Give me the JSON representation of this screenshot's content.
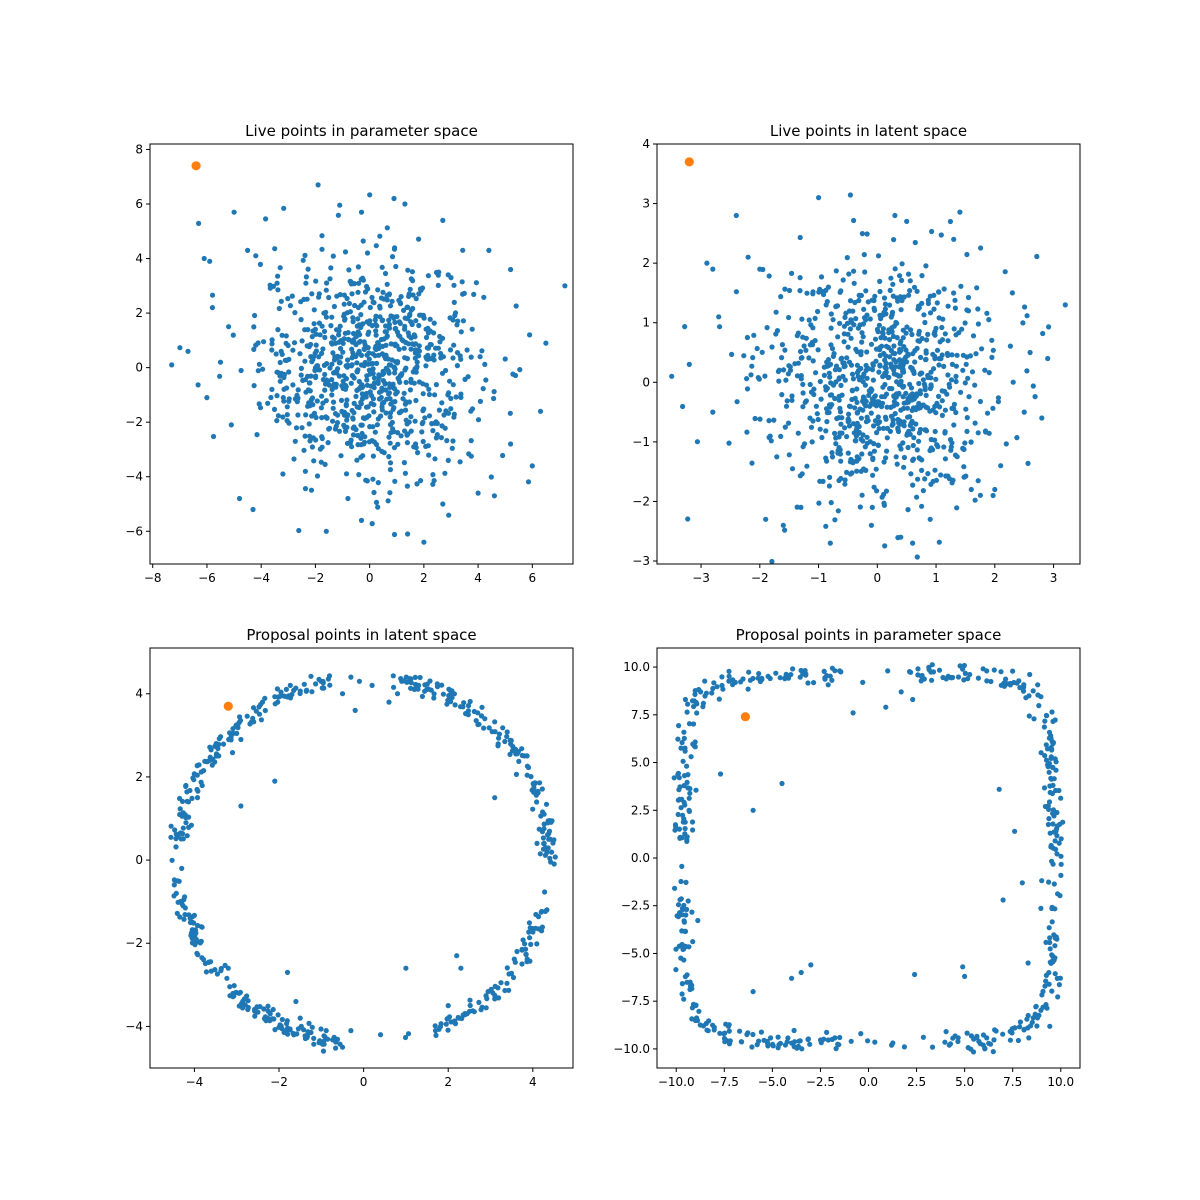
{
  "colors": {
    "live": "#1f77b4",
    "highlight": "#ff7f0e",
    "axes": "#000000",
    "background": "#ffffff"
  },
  "chart_data": [
    {
      "type": "scatter",
      "title": "Live points in parameter space",
      "xlabel": "",
      "ylabel": "",
      "xlim": [
        -8.1,
        7.5
      ],
      "ylim": [
        -7.2,
        8.2
      ],
      "xticks": [
        -8,
        -6,
        -4,
        -2,
        0,
        2,
        4,
        6
      ],
      "yticks": [
        -6,
        -4,
        -2,
        0,
        2,
        4,
        6,
        8
      ],
      "xtick_labels": [
        "−8",
        "−6",
        "−4",
        "−2",
        "0",
        "2",
        "4",
        "6"
      ],
      "ytick_labels": [
        "−6",
        "−4",
        "−2",
        "0",
        "2",
        "4",
        "6",
        "8"
      ],
      "grid": false,
      "pattern": "gaussian-cloud",
      "n_points": 900,
      "center": [
        0,
        0
      ],
      "sigma": [
        2,
        2
      ],
      "points": [
        [
          -7.3,
          0.1
        ],
        [
          -6.7,
          0.6
        ],
        [
          -6.1,
          4.0
        ],
        [
          -5.9,
          3.9
        ],
        [
          -6.0,
          -1.1
        ],
        [
          -5.8,
          2.2
        ],
        [
          -5.5,
          0.2
        ],
        [
          -5.1,
          -2.1
        ],
        [
          -5.2,
          1.5
        ],
        [
          -5.0,
          5.7
        ],
        [
          -4.8,
          -4.8
        ],
        [
          -4.3,
          -5.2
        ],
        [
          -4.5,
          4.3
        ],
        [
          -4.2,
          4.1
        ],
        [
          -1.9,
          6.7
        ],
        [
          0.9,
          6.2
        ],
        [
          1.3,
          6.0
        ],
        [
          2.7,
          5.4
        ],
        [
          -0.3,
          5.7
        ],
        [
          4.4,
          4.3
        ],
        [
          5.2,
          3.6
        ],
        [
          7.2,
          3.0
        ],
        [
          6.5,
          0.9
        ],
        [
          5.9,
          1.2
        ],
        [
          6.3,
          -1.6
        ],
        [
          5.2,
          -2.8
        ],
        [
          4.6,
          -4.7
        ],
        [
          4.0,
          -4.6
        ],
        [
          2.7,
          -5.0
        ],
        [
          2.0,
          -6.4
        ],
        [
          1.4,
          -6.1
        ],
        [
          -0.3,
          -5.6
        ],
        [
          -1.6,
          -6.0
        ],
        [
          -0.8,
          -4.8
        ],
        [
          3.0,
          3.3
        ],
        [
          -3.2,
          -3.9
        ],
        [
          2.9,
          -3.4
        ]
      ],
      "highlight": [
        [
          -6.4,
          7.4
        ]
      ]
    },
    {
      "type": "scatter",
      "title": "Live points in latent space",
      "xlabel": "",
      "ylabel": "",
      "xlim": [
        -3.75,
        3.45
      ],
      "ylim": [
        -3.05,
        4.0
      ],
      "xticks": [
        -3,
        -2,
        -1,
        0,
        1,
        2,
        3
      ],
      "yticks": [
        -3,
        -2,
        -1,
        0,
        1,
        2,
        3,
        4
      ],
      "xtick_labels": [
        "−3",
        "−2",
        "−1",
        "0",
        "1",
        "2",
        "3"
      ],
      "ytick_labels": [
        "−3",
        "−2",
        "−1",
        "0",
        "1",
        "2",
        "3",
        "4"
      ],
      "grid": false,
      "pattern": "gaussian-cloud",
      "n_points": 900,
      "center": [
        0,
        0
      ],
      "sigma": [
        1,
        1
      ],
      "points": [
        [
          -3.5,
          0.1
        ],
        [
          -3.2,
          0.3
        ],
        [
          -2.9,
          2.0
        ],
        [
          -2.8,
          1.9
        ],
        [
          -2.8,
          -0.5
        ],
        [
          -2.7,
          1.1
        ],
        [
          -2.4,
          2.8
        ],
        [
          -2.2,
          2.1
        ],
        [
          -2.0,
          1.9
        ],
        [
          -1.9,
          -2.3
        ],
        [
          -1.6,
          -2.4
        ],
        [
          -0.8,
          -2.7
        ],
        [
          0.6,
          -2.7
        ],
        [
          0.9,
          -2.3
        ],
        [
          -1.0,
          3.1
        ],
        [
          0.3,
          2.8
        ],
        [
          0.5,
          2.7
        ],
        [
          1.3,
          2.4
        ],
        [
          2.3,
          1.5
        ],
        [
          3.2,
          1.3
        ],
        [
          2.9,
          0.4
        ],
        [
          2.6,
          0.5
        ],
        [
          2.8,
          -0.6
        ],
        [
          2.5,
          -0.5
        ],
        [
          2.1,
          -1.4
        ],
        [
          2.0,
          -1.8
        ],
        [
          1.6,
          -1.8
        ],
        [
          -0.1,
          -2.4
        ],
        [
          -1.3,
          -2.1
        ],
        [
          0.4,
          -2.6
        ]
      ],
      "highlight": [
        [
          -3.2,
          3.7
        ]
      ]
    },
    {
      "type": "scatter",
      "title": "Proposal points in latent space",
      "xlabel": "",
      "ylabel": "",
      "xlim": [
        -5.05,
        4.95
      ],
      "ylim": [
        -5.0,
        5.1
      ],
      "xticks": [
        -4,
        -2,
        0,
        2,
        4
      ],
      "yticks": [
        -4,
        -2,
        0,
        2,
        4
      ],
      "xtick_labels": [
        "−4",
        "−2",
        "0",
        "2",
        "4"
      ],
      "ytick_labels": [
        "−4",
        "−2",
        "0",
        "2",
        "4"
      ],
      "grid": false,
      "pattern": "ring",
      "n_points": 500,
      "center": [
        0,
        0
      ],
      "radius": 4.4,
      "gaps_deg": [
        [
          78,
          100
        ],
        [
          176,
          186
        ],
        [
          262,
          292
        ],
        [
          345,
          358
        ]
      ],
      "points": [
        [
          -2.1,
          1.9
        ],
        [
          -2.9,
          1.3
        ],
        [
          -3.2,
          -2.6
        ],
        [
          -1.8,
          -2.7
        ],
        [
          -1.6,
          -3.4
        ],
        [
          -1.5,
          -3.8
        ],
        [
          -0.3,
          -4.1
        ],
        [
          -0.5,
          -4.5
        ],
        [
          0.4,
          -4.2
        ],
        [
          1.0,
          -2.6
        ],
        [
          2.2,
          -2.3
        ],
        [
          2.3,
          -2.6
        ],
        [
          2.0,
          -3.5
        ],
        [
          1.7,
          -4.1
        ],
        [
          3.1,
          1.5
        ],
        [
          0.8,
          4.0
        ],
        [
          0.9,
          4.3
        ],
        [
          1.3,
          4.2
        ],
        [
          0.6,
          3.8
        ],
        [
          -0.2,
          3.6
        ],
        [
          -0.5,
          4.0
        ],
        [
          -0.3,
          4.4
        ],
        [
          -0.1,
          4.3
        ],
        [
          0.2,
          4.2
        ],
        [
          -4.3,
          -0.2
        ],
        [
          -4.4,
          -0.5
        ],
        [
          -4.1,
          -1.4
        ],
        [
          -4.2,
          0.9
        ],
        [
          -2.9,
          2.9
        ],
        [
          4.1,
          0.4
        ]
      ],
      "highlight": [
        [
          -3.2,
          3.7
        ]
      ]
    },
    {
      "type": "scatter",
      "title": "Proposal points in parameter space",
      "xlabel": "",
      "ylabel": "",
      "xlim": [
        -11.0,
        11.0
      ],
      "ylim": [
        -11.0,
        11.0
      ],
      "xticks": [
        -10,
        -7.5,
        -5,
        -2.5,
        0,
        2.5,
        5,
        7.5,
        10
      ],
      "yticks": [
        -10,
        -7.5,
        -5,
        -2.5,
        0,
        2.5,
        5,
        7.5,
        10
      ],
      "xtick_labels": [
        "−10.0",
        "−7.5",
        "−5.0",
        "−2.5",
        "0.0",
        "2.5",
        "5.0",
        "7.5",
        "10.0"
      ],
      "ytick_labels": [
        "−10.0",
        "−7.5",
        "−5.0",
        "−2.5",
        "0.0",
        "2.5",
        "5.0",
        "7.5",
        "10.0"
      ],
      "grid": false,
      "pattern": "square-ring",
      "n_points": 500,
      "center": [
        0,
        0
      ],
      "radius": 9.6,
      "gaps_deg": [
        [
          78,
          100
        ],
        [
          176,
          186
        ],
        [
          262,
          292
        ],
        [
          345,
          358
        ]
      ],
      "points": [
        [
          -4.5,
          3.9
        ],
        [
          -6.0,
          2.5
        ],
        [
          -4.0,
          -6.3
        ],
        [
          -6.0,
          -7.0
        ],
        [
          -3.5,
          -6.0
        ],
        [
          -3.0,
          -5.6
        ],
        [
          -0.9,
          -9.6
        ],
        [
          -1.5,
          -9.4
        ],
        [
          -0.4,
          -9.2
        ],
        [
          1.2,
          -9.8
        ],
        [
          2.4,
          -6.1
        ],
        [
          4.9,
          -5.7
        ],
        [
          5.0,
          -6.2
        ],
        [
          4.2,
          -9.8
        ],
        [
          6.8,
          3.6
        ],
        [
          1.0,
          9.8
        ],
        [
          1.7,
          8.7
        ],
        [
          2.3,
          8.3
        ],
        [
          0.9,
          7.9
        ],
        [
          -0.8,
          7.6
        ],
        [
          -1.5,
          9.8
        ],
        [
          -0.3,
          9.2
        ],
        [
          8.0,
          -1.3
        ],
        [
          7.6,
          1.4
        ],
        [
          8.3,
          -5.5
        ],
        [
          9.2,
          2.7
        ],
        [
          7.0,
          -2.2
        ],
        [
          -7.7,
          4.4
        ]
      ],
      "highlight": [
        [
          -6.4,
          7.4
        ]
      ]
    }
  ]
}
